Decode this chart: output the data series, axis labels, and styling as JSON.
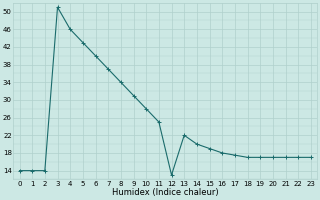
{
  "xlabel": "Humidex (Indice chaleur)",
  "ylabel": "",
  "bg_color": "#cce8e4",
  "grid_color": "#b0d0cc",
  "line_color": "#1a6b6b",
  "marker_color": "#1a6b6b",
  "x": [
    0,
    1,
    2,
    3,
    4,
    5,
    6,
    7,
    8,
    9,
    10,
    11,
    12,
    13,
    14,
    15,
    16,
    17,
    18,
    19,
    20,
    21,
    22,
    23
  ],
  "y": [
    14,
    14,
    14,
    51,
    46,
    43,
    40,
    37,
    34,
    31,
    28,
    25,
    13,
    22,
    20,
    19,
    18,
    17.5,
    17,
    17,
    17,
    17,
    17,
    17
  ],
  "xlim": [
    -0.5,
    23.5
  ],
  "ylim": [
    12,
    52
  ],
  "yticks": [
    14,
    18,
    22,
    26,
    30,
    34,
    38,
    42,
    46,
    50
  ],
  "xticks": [
    0,
    1,
    2,
    3,
    4,
    5,
    6,
    7,
    8,
    9,
    10,
    11,
    12,
    13,
    14,
    15,
    16,
    17,
    18,
    19,
    20,
    21,
    22,
    23
  ],
  "xtick_labels": [
    "0",
    "1",
    "2",
    "3",
    "4",
    "5",
    "6",
    "7",
    "8",
    "9",
    "10",
    "11",
    "12",
    "13",
    "14",
    "15",
    "16",
    "17",
    "18",
    "19",
    "20",
    "21",
    "22",
    "23"
  ]
}
